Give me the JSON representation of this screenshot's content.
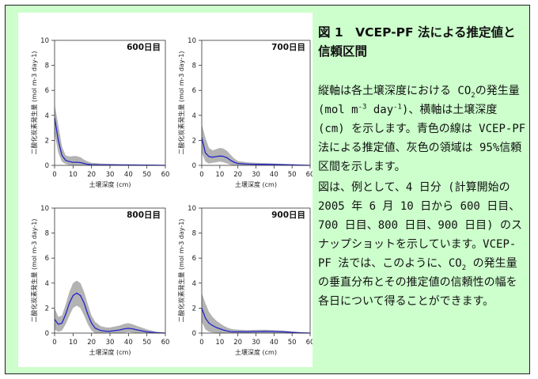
{
  "caption": {
    "title": "図 1　VCEP-PF 法による推定値と信頼区間",
    "p1": {
      "a": "縦軸は各土壌深度における CO",
      "sub1": "2",
      "b": "の発生量 (mol m",
      "sup1": "-3",
      "c": " day",
      "sup2": "-1",
      "d": ")、横軸は土壌深度 (cm) を示します。青色の線は VCEP-PF 法による推定値、灰色の領域は 95%信頼区間を示します。"
    },
    "p2": {
      "a": "図は、例として、4 日分 (計算開始の 2005 年 6 月 10 日から 600 日目、700 日目、800 日目、900 日目) のスナップショットを示しています。VCEP-PF 法では、このように、CO",
      "sub1": "2",
      "b": " の発生量の垂直分布とその推定値の信頼性の幅を各日について得ることができます。"
    }
  },
  "colors": {
    "background": "#ccffcc",
    "estimate_line": "#2222cc",
    "confidence_band": "#b3b3b3"
  },
  "chart_data": [
    {
      "type": "area",
      "panel_label": "600日目",
      "xlabel": "土壌深度 (cm)",
      "ylabel": "二酸化炭素発生量 (mol m-3 day-1)",
      "xlim": [
        0,
        60
      ],
      "ylim": [
        0,
        10
      ],
      "xticks": [
        0,
        10,
        20,
        30,
        40,
        50,
        60
      ],
      "yticks": [
        0,
        2,
        4,
        6,
        8,
        10
      ],
      "x": [
        0,
        2,
        4,
        6,
        8,
        10,
        12,
        14,
        16,
        18,
        20,
        25,
        30,
        35,
        40,
        45,
        50,
        55,
        60
      ],
      "estimate": [
        3.8,
        2.0,
        0.8,
        0.4,
        0.3,
        0.25,
        0.25,
        0.22,
        0.15,
        0.08,
        0.05,
        0.04,
        0.04,
        0.03,
        0.03,
        0.02,
        0.02,
        0.01,
        0.0
      ],
      "upper": [
        4.9,
        3.2,
        1.5,
        0.8,
        0.7,
        0.75,
        0.75,
        0.65,
        0.45,
        0.3,
        0.2,
        0.15,
        0.12,
        0.1,
        0.09,
        0.08,
        0.06,
        0.04,
        0.02
      ],
      "lower": [
        2.5,
        1.0,
        0.3,
        0.1,
        0.02,
        0.0,
        0.0,
        0.0,
        0.0,
        0.0,
        0.0,
        0.0,
        0.0,
        0.0,
        0.0,
        0.0,
        0.0,
        0.0,
        0.0
      ]
    },
    {
      "type": "area",
      "panel_label": "700日目",
      "xlabel": "土壌深度 (cm)",
      "ylabel": "二酸化炭素発生量 (mol m-3 day-1)",
      "xlim": [
        0,
        60
      ],
      "ylim": [
        0,
        10
      ],
      "xticks": [
        0,
        10,
        20,
        30,
        40,
        50,
        60
      ],
      "yticks": [
        0,
        2,
        4,
        6,
        8,
        10
      ],
      "x": [
        0,
        2,
        4,
        6,
        8,
        10,
        12,
        14,
        16,
        18,
        20,
        25,
        30,
        35,
        40,
        45,
        50,
        55,
        60
      ],
      "estimate": [
        2.2,
        1.0,
        0.7,
        0.65,
        0.7,
        0.75,
        0.72,
        0.6,
        0.4,
        0.25,
        0.15,
        0.1,
        0.08,
        0.08,
        0.07,
        0.05,
        0.04,
        0.02,
        0.0
      ],
      "upper": [
        3.3,
        2.2,
        1.4,
        1.2,
        1.3,
        1.4,
        1.35,
        1.15,
        0.85,
        0.55,
        0.35,
        0.25,
        0.2,
        0.18,
        0.15,
        0.12,
        0.09,
        0.06,
        0.03
      ],
      "lower": [
        1.0,
        0.3,
        0.15,
        0.2,
        0.25,
        0.3,
        0.25,
        0.15,
        0.05,
        0.0,
        0.0,
        0.0,
        0.0,
        0.0,
        0.0,
        0.0,
        0.0,
        0.0,
        0.0
      ]
    },
    {
      "type": "area",
      "panel_label": "800日目",
      "xlabel": "土壌深度 (cm)",
      "ylabel": "二酸化炭素発生量 (mol m-3 day-1)",
      "xlim": [
        0,
        60
      ],
      "ylim": [
        0,
        10
      ],
      "xticks": [
        0,
        10,
        20,
        30,
        40,
        50,
        60
      ],
      "yticks": [
        0,
        2,
        4,
        6,
        8,
        10
      ],
      "x": [
        0,
        2,
        4,
        6,
        8,
        10,
        12,
        14,
        16,
        18,
        20,
        22,
        25,
        28,
        30,
        35,
        38,
        40,
        42,
        45,
        50,
        55,
        60
      ],
      "estimate": [
        1.1,
        0.7,
        0.8,
        1.5,
        2.4,
        3.0,
        3.2,
        3.0,
        2.4,
        1.5,
        0.8,
        0.4,
        0.2,
        0.15,
        0.15,
        0.25,
        0.35,
        0.38,
        0.35,
        0.25,
        0.1,
        0.03,
        0.0
      ],
      "upper": [
        2.0,
        1.3,
        1.4,
        2.3,
        3.3,
        4.0,
        4.2,
        4.0,
        3.3,
        2.3,
        1.4,
        0.9,
        0.55,
        0.45,
        0.45,
        0.6,
        0.75,
        0.8,
        0.72,
        0.55,
        0.3,
        0.12,
        0.05
      ],
      "lower": [
        0.3,
        0.1,
        0.2,
        0.7,
        1.4,
        2.0,
        2.2,
        2.0,
        1.4,
        0.7,
        0.2,
        0.0,
        0.0,
        0.0,
        0.0,
        0.0,
        0.05,
        0.08,
        0.05,
        0.0,
        0.0,
        0.0,
        0.0
      ]
    },
    {
      "type": "area",
      "panel_label": "900日目",
      "xlabel": "土壌深度 (cm)",
      "ylabel": "二酸化炭素発生量 (mol m-3 day-1)",
      "xlim": [
        0,
        60
      ],
      "ylim": [
        0,
        10
      ],
      "xticks": [
        0,
        10,
        20,
        30,
        40,
        50,
        60
      ],
      "yticks": [
        0,
        2,
        4,
        6,
        8,
        10
      ],
      "x": [
        0,
        2,
        4,
        6,
        8,
        10,
        12,
        14,
        16,
        18,
        20,
        25,
        30,
        35,
        40,
        45,
        50,
        55,
        60
      ],
      "estimate": [
        2.0,
        1.2,
        0.8,
        0.6,
        0.45,
        0.35,
        0.25,
        0.18,
        0.12,
        0.1,
        0.1,
        0.1,
        0.12,
        0.13,
        0.12,
        0.1,
        0.06,
        0.02,
        0.0
      ],
      "upper": [
        3.2,
        2.4,
        1.7,
        1.3,
        1.0,
        0.8,
        0.6,
        0.45,
        0.35,
        0.3,
        0.28,
        0.25,
        0.26,
        0.27,
        0.25,
        0.2,
        0.14,
        0.07,
        0.03
      ],
      "lower": [
        0.9,
        0.3,
        0.1,
        0.05,
        0.0,
        0.0,
        0.0,
        0.0,
        0.0,
        0.0,
        0.0,
        0.0,
        0.0,
        0.0,
        0.0,
        0.0,
        0.0,
        0.0,
        0.0
      ]
    }
  ]
}
